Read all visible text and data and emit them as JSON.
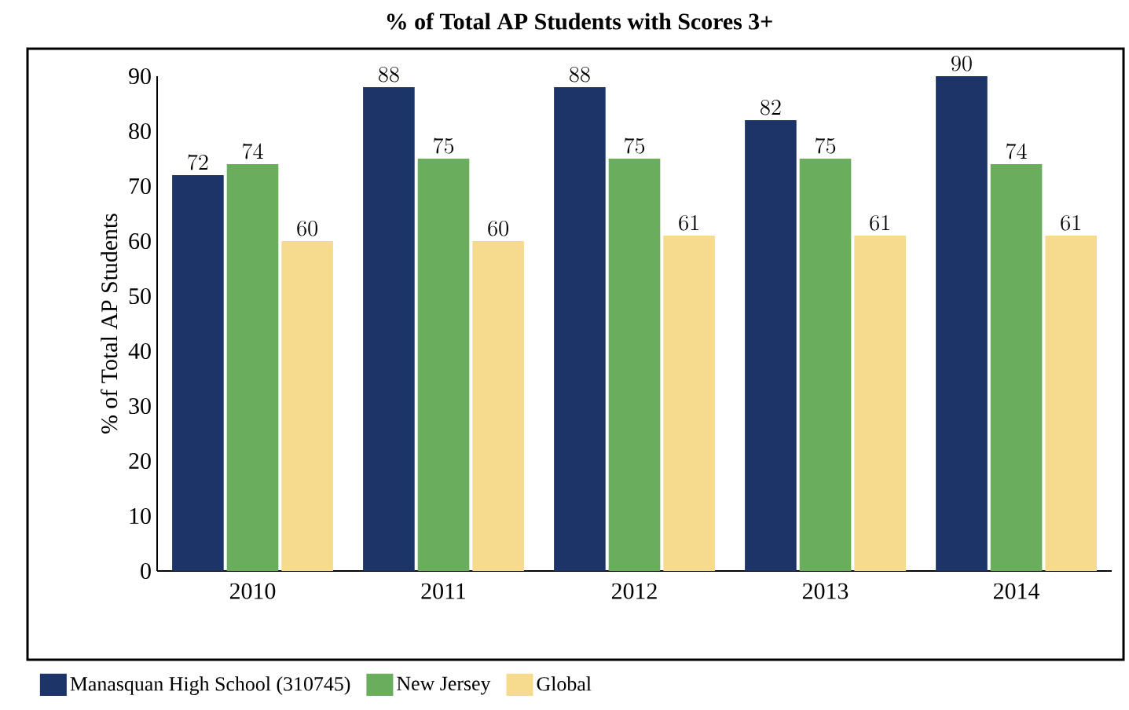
{
  "chart_data": {
    "type": "bar",
    "title": "% of Total AP Students with Scores 3+",
    "ylabel": "% of Total AP Students",
    "categories": [
      "2010",
      "2011",
      "2012",
      "2013",
      "2014"
    ],
    "series": [
      {
        "name": "Manasquan High School (310745)",
        "color": "#1c3468",
        "values": [
          72,
          88,
          88,
          82,
          90
        ]
      },
      {
        "name": "New Jersey",
        "color": "#6aad5c",
        "values": [
          74,
          75,
          75,
          75,
          74
        ]
      },
      {
        "name": "Global",
        "color": "#f6da8e",
        "values": [
          60,
          60,
          61,
          61,
          61
        ]
      }
    ],
    "ylim": [
      0,
      90
    ],
    "yticks": [
      0,
      10,
      20,
      30,
      40,
      50,
      60,
      70,
      80,
      90
    ],
    "data_labels": true,
    "grid": false,
    "legend": "bottom left"
  }
}
